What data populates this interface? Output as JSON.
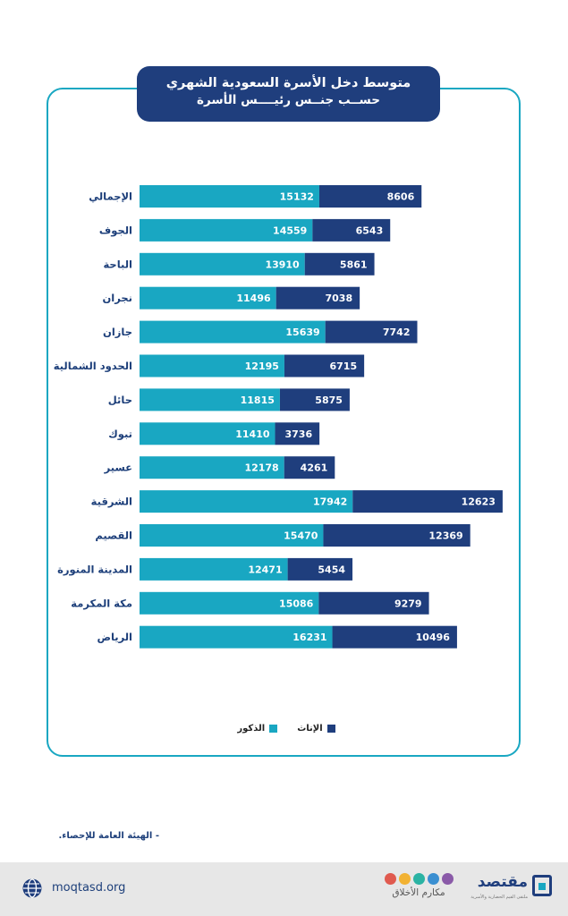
{
  "title": {
    "line1": "متوسط دخل الأسرة السعودية الشهري",
    "line2": "حســب جنــس رئيــــس الأسرة"
  },
  "legend": {
    "female": "الإناث",
    "male": "الذكور"
  },
  "source": "- الهيئة العامة للإحصاء.",
  "footer": {
    "url": "moqtasd.org",
    "makarem_label": "مكارم الأخلاق",
    "brand_name": "مقتصد",
    "brand_tagline": "ملتقى القيم الحضارية والأسرية"
  },
  "colors": {
    "male": "#19a7c2",
    "female": "#1f3e7d",
    "frame": "#19a7c2",
    "title_bg": "#1f3e7d"
  },
  "chart_data": {
    "type": "bar",
    "orientation": "horizontal",
    "stacked": true,
    "categories": [
      "الإجمالي",
      "الجوف",
      "الباحة",
      "نجران",
      "جازان",
      "الحدود الشمالية",
      "حائل",
      "تبوك",
      "عسير",
      "الشرقية",
      "القصيم",
      "المدينة المنورة",
      "مكة المكرمة",
      "الرياض"
    ],
    "series": [
      {
        "name": "الذكور",
        "color": "#19a7c2",
        "values": [
          15132,
          14559,
          13910,
          11496,
          15639,
          12195,
          11815,
          11410,
          12178,
          17942,
          15470,
          12471,
          15086,
          16231
        ]
      },
      {
        "name": "الإناث",
        "color": "#1f3e7d",
        "values": [
          8606,
          6543,
          5861,
          7038,
          7742,
          6715,
          5875,
          3736,
          4261,
          12623,
          12369,
          5454,
          9279,
          10496
        ]
      }
    ],
    "title": "متوسط دخل الأسرة السعودية الشهري حسب جنس رئيس الأسرة",
    "data_labels": true,
    "axes_visible": false,
    "legend_position": "bottom-center"
  }
}
